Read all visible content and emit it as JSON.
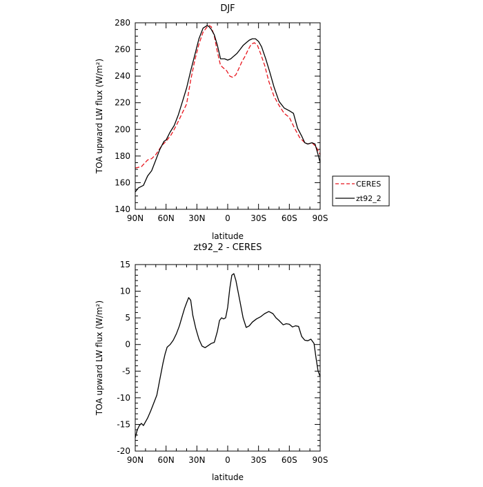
{
  "chart_data": [
    {
      "type": "line",
      "title": "DJF",
      "xlabel": "latitude",
      "ylabel": "TOA upward LW flux (W/m²)",
      "xlim": [
        -90,
        90
      ],
      "ylim": [
        140,
        280
      ],
      "x_ticks": [
        -90,
        -60,
        -30,
        0,
        30,
        60,
        90
      ],
      "x_tick_labels": [
        "90N",
        "60N",
        "30N",
        "0",
        "30S",
        "60S",
        "90S"
      ],
      "y_ticks": [
        140,
        160,
        180,
        200,
        220,
        240,
        260,
        280
      ],
      "y_tick_labels": [
        "140",
        "160",
        "180",
        "200",
        "220",
        "240",
        "260",
        "280"
      ],
      "grid": false,
      "legend": {
        "position": "outside-right",
        "entries": [
          "CERES",
          "zt92_2"
        ]
      },
      "series": [
        {
          "name": "CERES",
          "color": "#e8131b",
          "dash": "dashed",
          "x": [
            -90,
            -84,
            -78,
            -74,
            -70,
            -64,
            -60,
            -55,
            -50,
            -45,
            -40,
            -36,
            -32,
            -28,
            -24,
            -20,
            -18,
            -16,
            -13,
            -10,
            -7,
            -4,
            -1,
            2,
            5,
            8,
            11,
            14,
            17,
            20,
            23,
            26,
            29,
            32,
            36,
            40,
            45,
            50,
            55,
            60,
            65,
            70,
            75,
            78,
            82,
            86,
            90
          ],
          "y": [
            171,
            172,
            177,
            178,
            181,
            188,
            191,
            196,
            203,
            211,
            219,
            237,
            252,
            264,
            273,
            277,
            278,
            277,
            270,
            258,
            248,
            246,
            244,
            240,
            239,
            241,
            246,
            251,
            255,
            260,
            264,
            265,
            263,
            257,
            248,
            236,
            225,
            218,
            212,
            209,
            201,
            194,
            190,
            189,
            190,
            187,
            181
          ]
        },
        {
          "name": "zt92_2",
          "color": "#000000",
          "dash": "solid",
          "x": [
            -90,
            -87,
            -82,
            -78,
            -74,
            -70,
            -66,
            -62,
            -60,
            -56,
            -52,
            -48,
            -44,
            -40,
            -36,
            -32,
            -28,
            -24,
            -20,
            -18,
            -16,
            -13,
            -10,
            -7,
            -5,
            -3,
            0,
            3,
            6,
            9,
            12,
            15,
            18,
            21,
            24,
            27,
            30,
            33,
            37,
            41,
            45,
            50,
            55,
            60,
            64,
            68,
            72,
            75,
            78,
            82,
            85,
            88,
            90
          ],
          "y": [
            153,
            156,
            158,
            165,
            169,
            177,
            185,
            191,
            192,
            198,
            203,
            211,
            221,
            231,
            244,
            256,
            268,
            276,
            278,
            277,
            275,
            271,
            263,
            253,
            253,
            253,
            252,
            253,
            255,
            257,
            260,
            263,
            265,
            267,
            268,
            268,
            266,
            262,
            253,
            243,
            232,
            221,
            216,
            214,
            212,
            201,
            195,
            190,
            189,
            190,
            189,
            181,
            175
          ]
        }
      ]
    },
    {
      "type": "line",
      "title": "zt92_2 - CERES",
      "xlabel": "latitude",
      "ylabel": "TOA upward LW flux (W/m²)",
      "xlim": [
        -90,
        90
      ],
      "ylim": [
        -20,
        15
      ],
      "x_ticks": [
        -90,
        -60,
        -30,
        0,
        30,
        60,
        90
      ],
      "x_tick_labels": [
        "90N",
        "60N",
        "30N",
        "0",
        "30S",
        "60S",
        "90S"
      ],
      "y_ticks": [
        -20,
        -15,
        -10,
        -5,
        0,
        5,
        10,
        15
      ],
      "y_tick_labels": [
        "-20",
        "-15",
        "-10",
        "-5",
        "0",
        "5",
        "10",
        "15"
      ],
      "grid": false,
      "series": [
        {
          "color": "#000000",
          "dash": "solid",
          "x": [
            -90,
            -88,
            -86,
            -84,
            -82,
            -80,
            -78,
            -75,
            -72,
            -69,
            -66,
            -63,
            -61,
            -59,
            -56,
            -53,
            -50,
            -47,
            -44,
            -42,
            -40,
            -38,
            -36,
            -34,
            -31,
            -28,
            -25,
            -22,
            -19,
            -16,
            -13,
            -10,
            -8,
            -6,
            -4,
            -2,
            0,
            2,
            4,
            6,
            8,
            10,
            12,
            15,
            18,
            21,
            24,
            28,
            32,
            36,
            40,
            44,
            47,
            50,
            54,
            57,
            60,
            63,
            66,
            69,
            72,
            75,
            78,
            81,
            84,
            86,
            88,
            90
          ],
          "y": [
            -17.5,
            -16,
            -15.2,
            -14.8,
            -15.2,
            -14.5,
            -13.8,
            -12.5,
            -11,
            -9.5,
            -6.5,
            -3.5,
            -1.8,
            -0.5,
            0,
            0.8,
            2,
            3.5,
            5.5,
            6.8,
            7.8,
            8.8,
            8.3,
            5.5,
            3,
            1,
            -0.3,
            -0.6,
            -0.2,
            0.2,
            0.4,
            2.5,
            4.5,
            5,
            4.8,
            5,
            7,
            10.5,
            13,
            13.3,
            12,
            10,
            8,
            5,
            3.2,
            3.5,
            4.2,
            4.8,
            5.2,
            5.8,
            6.2,
            5.8,
            5,
            4.5,
            3.7,
            3.9,
            3.8,
            3.3,
            3.5,
            3.4,
            1.5,
            0.8,
            0.7,
            1,
            0.2,
            -2.5,
            -5,
            -6
          ]
        }
      ]
    }
  ]
}
